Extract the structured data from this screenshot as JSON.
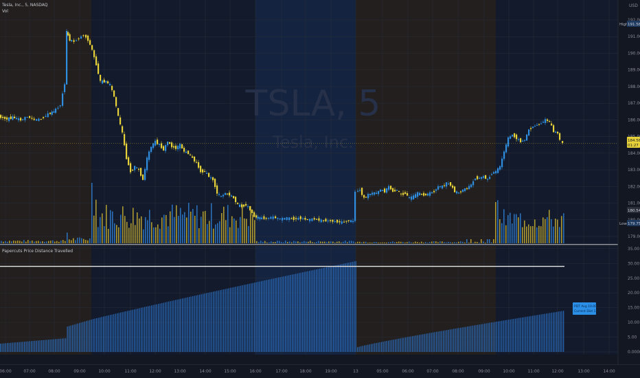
{
  "header": {
    "symbol_line": "Tesla, Inc., 5, NASDAQ",
    "volume_label": "Vol"
  },
  "watermark": {
    "ticker": "TSLA, 5",
    "name": "Tesla, Inc."
  },
  "indicator": {
    "title": "Papercuts Price Distance Travelled"
  },
  "price_axis": {
    "currency": "USD",
    "high_label": "High",
    "high_value": "191.58",
    "last_value": "184.58",
    "last_time": "01:27",
    "aux_value": "180.54",
    "low_label": "Low",
    "low_value": "179.75"
  },
  "ind_tag": {
    "line1": "PDT Avg 10.00",
    "line2": "Current Dist 13.84"
  },
  "chart_data": [
    {
      "type": "candlestick",
      "title": "Tesla, Inc., 5, NASDAQ",
      "y_ticks": [
        "192.00",
        "191.00",
        "190.00",
        "189.00",
        "188.00",
        "187.00",
        "186.00",
        "185.00",
        "184.00",
        "183.00",
        "182.00",
        "181.00",
        "180.00",
        "179.00"
      ],
      "x_ticks": [
        "06:00",
        "07:00",
        "08:00",
        "09:00",
        "10:00",
        "11:00",
        "12:00",
        "13:00",
        "14:00",
        "15:00",
        "16:00",
        "17:00",
        "18:00",
        "19:00",
        "13",
        "05:00",
        "06:00",
        "07:00",
        "08:00",
        "09:00",
        "10:00",
        "11:00",
        "12:00",
        "13:00",
        "14:00"
      ],
      "ylim": [
        178.6,
        192.4
      ],
      "close_path": [
        [
          0,
          186.2
        ],
        [
          12,
          186.05
        ],
        [
          20,
          186.15
        ],
        [
          32,
          186.0
        ],
        [
          42,
          186.2
        ],
        [
          52,
          186.0
        ],
        [
          62,
          186.05
        ],
        [
          72,
          186.35
        ],
        [
          80,
          186.5
        ],
        [
          90,
          186.9
        ],
        [
          96,
          188.2
        ],
        [
          98,
          191.3
        ],
        [
          103,
          190.8
        ],
        [
          110,
          190.7
        ],
        [
          117,
          190.9
        ],
        [
          124,
          191.1
        ],
        [
          130,
          190.8
        ],
        [
          136,
          190.2
        ],
        [
          142,
          189.3
        ],
        [
          148,
          188.3
        ],
        [
          156,
          188.3
        ],
        [
          162,
          188.1
        ],
        [
          168,
          187.4
        ],
        [
          174,
          186.2
        ],
        [
          180,
          185.2
        ],
        [
          186,
          183.7
        ],
        [
          192,
          182.9
        ],
        [
          198,
          183.2
        ],
        [
          204,
          183.0
        ],
        [
          210,
          182.4
        ],
        [
          216,
          183.7
        ],
        [
          222,
          184.4
        ],
        [
          228,
          184.7
        ],
        [
          234,
          184.5
        ],
        [
          240,
          184.2
        ],
        [
          246,
          184.7
        ],
        [
          252,
          184.4
        ],
        [
          258,
          184.3
        ],
        [
          264,
          184.5
        ],
        [
          270,
          184.1
        ],
        [
          276,
          184.0
        ],
        [
          282,
          183.7
        ],
        [
          288,
          183.4
        ],
        [
          294,
          182.9
        ],
        [
          300,
          182.9
        ],
        [
          306,
          182.6
        ],
        [
          312,
          182.4
        ],
        [
          318,
          181.6
        ],
        [
          324,
          181.4
        ],
        [
          330,
          181.6
        ],
        [
          336,
          181.5
        ],
        [
          342,
          181.3
        ],
        [
          348,
          180.9
        ],
        [
          354,
          180.8
        ],
        [
          360,
          180.9
        ],
        [
          366,
          180.6
        ],
        [
          372,
          180.2
        ],
        [
          380,
          180.1
        ],
        [
          390,
          180.1
        ],
        [
          400,
          180.15
        ],
        [
          410,
          180.05
        ],
        [
          420,
          180.1
        ],
        [
          430,
          180.05
        ],
        [
          440,
          180.1
        ],
        [
          450,
          180.0
        ],
        [
          460,
          180.05
        ],
        [
          470,
          179.95
        ],
        [
          480,
          179.95
        ],
        [
          490,
          179.9
        ],
        [
          500,
          179.85
        ],
        [
          510,
          179.95
        ],
        [
          516,
          179.9
        ],
        [
          520,
          181.7
        ],
        [
          526,
          181.8
        ],
        [
          532,
          181.3
        ],
        [
          538,
          181.5
        ],
        [
          544,
          181.6
        ],
        [
          550,
          181.6
        ],
        [
          556,
          181.8
        ],
        [
          562,
          181.7
        ],
        [
          568,
          182.0
        ],
        [
          574,
          181.7
        ],
        [
          580,
          181.8
        ],
        [
          586,
          181.5
        ],
        [
          592,
          181.6
        ],
        [
          598,
          181.3
        ],
        [
          604,
          181.4
        ],
        [
          610,
          181.6
        ],
        [
          616,
          181.5
        ],
        [
          622,
          181.5
        ],
        [
          628,
          181.6
        ],
        [
          634,
          181.7
        ],
        [
          640,
          182.0
        ],
        [
          646,
          182.0
        ],
        [
          652,
          182.2
        ],
        [
          658,
          182.1
        ],
        [
          664,
          181.7
        ],
        [
          670,
          181.6
        ],
        [
          676,
          181.8
        ],
        [
          682,
          181.9
        ],
        [
          688,
          182.1
        ],
        [
          694,
          182.5
        ],
        [
          700,
          182.5
        ],
        [
          706,
          182.6
        ],
        [
          712,
          182.4
        ],
        [
          718,
          182.8
        ],
        [
          724,
          182.9
        ],
        [
          730,
          183.2
        ],
        [
          736,
          184.1
        ],
        [
          742,
          184.9
        ],
        [
          748,
          185.1
        ],
        [
          754,
          184.9
        ],
        [
          760,
          184.7
        ],
        [
          766,
          184.8
        ],
        [
          772,
          185.4
        ],
        [
          778,
          185.6
        ],
        [
          784,
          185.7
        ],
        [
          790,
          185.8
        ],
        [
          796,
          186.0
        ],
        [
          802,
          185.9
        ],
        [
          808,
          185.3
        ],
        [
          814,
          185.2
        ],
        [
          818,
          184.8
        ],
        [
          822,
          184.58
        ]
      ]
    },
    {
      "type": "bar",
      "title": "Papercuts Price Distance Travelled",
      "y_ticks": [
        "35.00",
        "30.00",
        "25.00",
        "20.00",
        "15.00",
        "10.00",
        "5.00",
        "0.0000"
      ],
      "ylim": [
        0,
        35
      ],
      "reference_line": 29.0,
      "sessions": [
        {
          "x_start": 0,
          "x_end": 518,
          "start_value": 2.8,
          "end_value": 30.8
        },
        {
          "x_start": 520,
          "x_end": 822,
          "start_value": 1.6,
          "end_value": 14.0
        }
      ]
    }
  ]
}
